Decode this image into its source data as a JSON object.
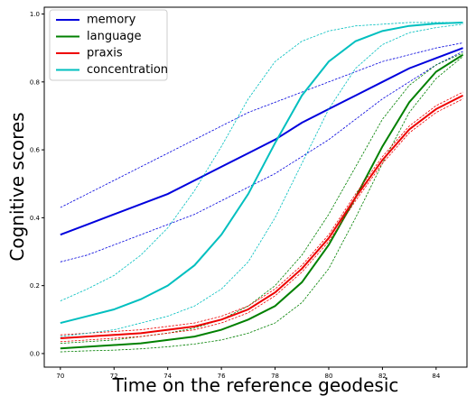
{
  "chart_data": {
    "type": "line",
    "xlabel": "Time on the reference geodesic",
    "ylabel": "Cognitive scores",
    "x": [
      70,
      71,
      72,
      73,
      74,
      75,
      76,
      77,
      78,
      79,
      80,
      81,
      82,
      83,
      84,
      85
    ],
    "xlim": [
      69.4,
      85.15
    ],
    "ylim": [
      -0.04,
      1.02
    ],
    "xticks": [
      70,
      72,
      74,
      76,
      78,
      80,
      82,
      84
    ],
    "yticks": [
      {
        "value": 0,
        "label": "0.0"
      },
      0.2,
      0.4,
      0.6,
      0.8,
      {
        "value": 1,
        "label": "1.0"
      }
    ],
    "legend": "upper left",
    "series": [
      {
        "name": "memory",
        "color": "#0000dd",
        "values": [
          0.35,
          0.38,
          0.41,
          0.44,
          0.47,
          0.51,
          0.55,
          0.59,
          0.63,
          0.68,
          0.72,
          0.76,
          0.8,
          0.84,
          0.87,
          0.9
        ],
        "upper": [
          0.43,
          0.47,
          0.51,
          0.55,
          0.59,
          0.63,
          0.67,
          0.71,
          0.74,
          0.77,
          0.8,
          0.83,
          0.86,
          0.88,
          0.9,
          0.915
        ],
        "lower": [
          0.27,
          0.29,
          0.32,
          0.35,
          0.38,
          0.41,
          0.45,
          0.49,
          0.53,
          0.58,
          0.63,
          0.69,
          0.75,
          0.8,
          0.85,
          0.89
        ]
      },
      {
        "name": "language",
        "color": "#008000",
        "values": [
          0.015,
          0.02,
          0.025,
          0.03,
          0.04,
          0.05,
          0.07,
          0.1,
          0.14,
          0.21,
          0.32,
          0.46,
          0.61,
          0.74,
          0.83,
          0.88
        ],
        "upper": [
          0.03,
          0.035,
          0.04,
          0.05,
          0.06,
          0.075,
          0.1,
          0.14,
          0.2,
          0.29,
          0.41,
          0.55,
          0.69,
          0.79,
          0.85,
          0.885
        ],
        "lower": [
          0.005,
          0.008,
          0.01,
          0.014,
          0.02,
          0.028,
          0.04,
          0.06,
          0.09,
          0.15,
          0.25,
          0.4,
          0.56,
          0.71,
          0.81,
          0.875
        ]
      },
      {
        "name": "praxis",
        "color": "#ee0000",
        "values": [
          0.045,
          0.05,
          0.055,
          0.06,
          0.07,
          0.08,
          0.1,
          0.13,
          0.18,
          0.25,
          0.34,
          0.46,
          0.57,
          0.66,
          0.72,
          0.76
        ],
        "upper": [
          0.055,
          0.06,
          0.065,
          0.07,
          0.08,
          0.09,
          0.11,
          0.14,
          0.19,
          0.26,
          0.35,
          0.47,
          0.58,
          0.67,
          0.73,
          0.77
        ],
        "lower": [
          0.035,
          0.04,
          0.045,
          0.05,
          0.06,
          0.07,
          0.09,
          0.12,
          0.17,
          0.24,
          0.33,
          0.45,
          0.56,
          0.65,
          0.71,
          0.75
        ]
      },
      {
        "name": "concentration",
        "color": "#00bfbf",
        "values": [
          0.09,
          0.11,
          0.13,
          0.16,
          0.2,
          0.26,
          0.35,
          0.47,
          0.62,
          0.76,
          0.86,
          0.92,
          0.95,
          0.965,
          0.972,
          0.975
        ],
        "upper": [
          0.155,
          0.19,
          0.23,
          0.29,
          0.37,
          0.48,
          0.61,
          0.75,
          0.86,
          0.92,
          0.95,
          0.965,
          0.97,
          0.975,
          0.975,
          0.975
        ],
        "lower": [
          0.05,
          0.06,
          0.07,
          0.09,
          0.11,
          0.14,
          0.19,
          0.27,
          0.4,
          0.56,
          0.72,
          0.84,
          0.91,
          0.945,
          0.96,
          0.97
        ]
      }
    ]
  }
}
